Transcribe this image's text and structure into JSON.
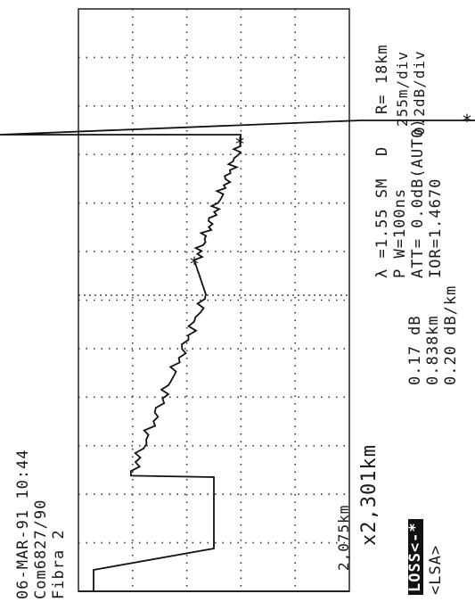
{
  "header": {
    "date_time": "06-MAR-91 10:44",
    "cable": "Com6827/90",
    "fibre": "Fibra 2"
  },
  "scale": {
    "display_mode": "D",
    "range": "R= 18km",
    "horizontal": "255m/div",
    "vertical": "0.2dB/div"
  },
  "settings": {
    "wavelength": "λ =1.55 SM",
    "pulse_width": "P W=100ns",
    "attenuation": "ATT= 0.0dB(AUTO)",
    "ior": "IOR=1.4670"
  },
  "results": {
    "loss": "0.17 dB",
    "distance": "0.838km",
    "attenuation_per_km": "0.20 dB/km"
  },
  "mode": {
    "loss_badge": "LOSS<-*",
    "method": "<LSA>"
  },
  "markers": {
    "cursor_x_label": "x2,301km",
    "cursor_small_label": "2,075km"
  },
  "chart_data": {
    "type": "line",
    "title": "",
    "xlabel": "",
    "ylabel": "",
    "grid": true,
    "divisions": {
      "horizontal": 12,
      "vertical": 5
    },
    "series": [
      {
        "points": [
          [
            0.0,
            0.0
          ],
          [
            0.15,
            0.0
          ],
          [
            0.3,
            -0.45
          ],
          [
            0.8,
            -0.45
          ],
          [
            0.81,
            -0.14
          ],
          [
            2.08,
            -0.42
          ],
          [
            2.301,
            -0.38
          ],
          [
            3.14,
            -0.55
          ],
          [
            3.2,
            -0.55
          ],
          [
            3.2,
            0.35
          ],
          [
            3.3,
            -1.0
          ],
          [
            3.3,
            -1.9
          ]
        ]
      }
    ],
    "markers": [
      {
        "label": "*",
        "x": 2.301,
        "y": -0.38
      },
      {
        "label": "*",
        "x": 3.14,
        "y": -0.55
      },
      {
        "label": "*",
        "x": 3.3,
        "y": -1.4
      }
    ]
  }
}
